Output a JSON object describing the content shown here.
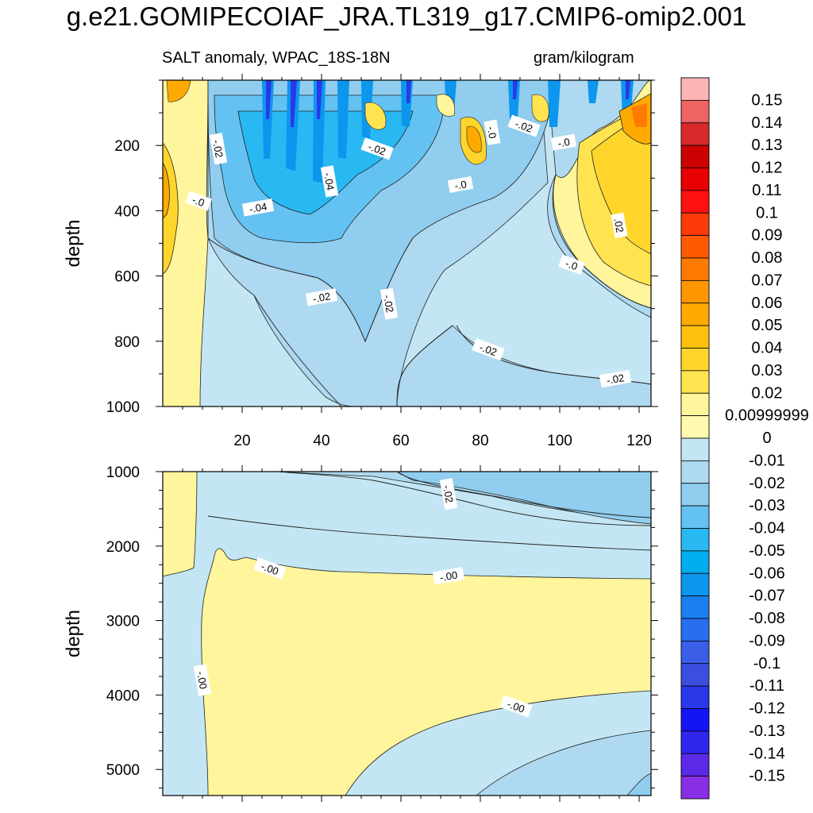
{
  "title": "g.e21.GOMIPECOIAF_JRA.TL319_g17.CMIP6-omip2.001",
  "subtitle_left": "SALT anomaly, WPAC_18S-18N",
  "subtitle_right": "gram/kilogram",
  "chart_data": [
    {
      "type": "contour",
      "panel": "upper",
      "xlabel": "",
      "ylabel": "depth",
      "xlim": [
        0,
        123
      ],
      "ylim": [
        0,
        1000
      ],
      "y_inverted": true,
      "x_ticks": [
        20,
        40,
        60,
        80,
        100,
        120
      ],
      "y_ticks": [
        200,
        400,
        600,
        800,
        1000
      ],
      "contour_labels": [
        {
          "text": "-.02",
          "x": 14,
          "y": 210
        },
        {
          "text": "-.0",
          "x": 9,
          "y": 370
        },
        {
          "text": "-.04",
          "x": 24,
          "y": 390
        },
        {
          "text": "-.04",
          "x": 42,
          "y": 310
        },
        {
          "text": "-.02",
          "x": 54,
          "y": 210
        },
        {
          "text": "-.0",
          "x": 75,
          "y": 320
        },
        {
          "text": "-.0",
          "x": 83,
          "y": 160
        },
        {
          "text": "-.02",
          "x": 91,
          "y": 140
        },
        {
          "text": "-.0",
          "x": 101,
          "y": 190
        },
        {
          "text": ".02",
          "x": 115,
          "y": 445
        },
        {
          "text": "-.0",
          "x": 103,
          "y": 565
        },
        {
          "text": "-.02",
          "x": 40,
          "y": 665
        },
        {
          "text": "-.02",
          "x": 57,
          "y": 685
        },
        {
          "text": "-.02",
          "x": 82,
          "y": 825
        },
        {
          "text": "-.02",
          "x": 114,
          "y": 915
        }
      ]
    },
    {
      "type": "contour",
      "panel": "lower",
      "xlabel": "",
      "ylabel": "depth",
      "xlim": [
        0,
        123
      ],
      "ylim": [
        1000,
        5350
      ],
      "y_inverted": true,
      "y_ticks": [
        1000,
        2000,
        3000,
        4000,
        5000
      ],
      "contour_labels": [
        {
          "text": "-.02",
          "x": 72,
          "y": 1300
        },
        {
          "text": "-.00",
          "x": 27,
          "y": 2300
        },
        {
          "text": "-.00",
          "x": 72,
          "y": 2400
        },
        {
          "text": "-.00",
          "x": 10,
          "y": 3800
        },
        {
          "text": "-.00",
          "x": 89,
          "y": 4150
        }
      ]
    }
  ],
  "colorbar": {
    "labels": [
      "0.15",
      "0.14",
      "0.13",
      "0.12",
      "0.11",
      "0.1",
      "0.09",
      "0.08",
      "0.07",
      "0.06",
      "0.05",
      "0.04",
      "0.03",
      "0.02",
      "0.00999999",
      "0",
      "-0.01",
      "-0.02",
      "-0.03",
      "-0.04",
      "-0.05",
      "-0.06",
      "-0.07",
      "-0.08",
      "-0.09",
      "-0.1",
      "-0.11",
      "-0.12",
      "-0.13",
      "-0.14",
      "-0.15"
    ],
    "colors": [
      "#fcb4b4",
      "#ec6464",
      "#d82a2a",
      "#cc0000",
      "#e60000",
      "#ff1010",
      "#ff3a0a",
      "#ff5a00",
      "#ff7a00",
      "#ff9600",
      "#ffaa00",
      "#ffc10e",
      "#ffd52c",
      "#ffe450",
      "#fff59c",
      "#fffaae",
      "#c4e6f4",
      "#aed9f0",
      "#90cdee",
      "#64c2f2",
      "#28b8f2",
      "#00adef",
      "#0c96ee",
      "#1a80f0",
      "#2a6ef0",
      "#3a5ee6",
      "#3c4ee0",
      "#2a38ea",
      "#1414f5",
      "#3026ee",
      "#5a2ae6",
      "#8a2ee6"
    ]
  }
}
